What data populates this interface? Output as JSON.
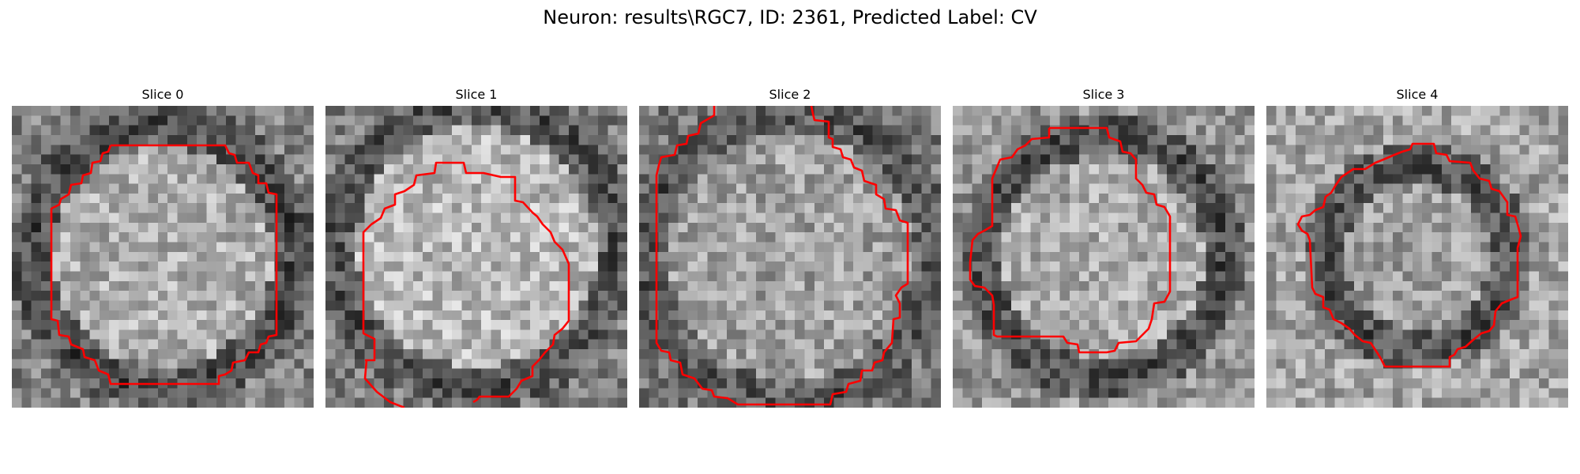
{
  "figure": {
    "suptitle": "Neuron: results\\RGC7, ID: 2361, Predicted Label: CV"
  },
  "slices": [
    {
      "title": "Slice 0"
    },
    {
      "title": "Slice 1"
    },
    {
      "title": "Slice 2"
    },
    {
      "title": "Slice 3"
    },
    {
      "title": "Slice 4"
    }
  ],
  "colors": {
    "contour": "#ff0000",
    "background": "#ffffff"
  }
}
